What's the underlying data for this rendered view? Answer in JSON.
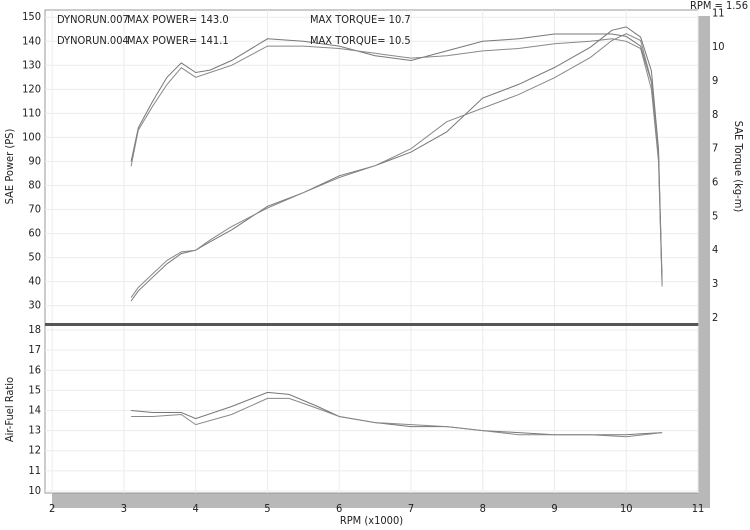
{
  "chart_data": [
    {
      "type": "line",
      "note": "RPM = 1.56",
      "ylabel": "SAE Power (PS)",
      "y2label": "SAE Torque (kg-m)",
      "annotations": [
        "MAX POWER= 143.0",
        "MAX TORQUE= 10.7",
        "MAX POWER= 141.1",
        "MAX TORQUE= 10.5"
      ],
      "x": [
        3.1,
        3.2,
        3.4,
        3.6,
        3.8,
        4.0,
        4.2,
        4.5,
        5.0,
        5.5,
        6.0,
        6.5,
        7.0,
        7.5,
        8.0,
        8.5,
        9.0,
        9.5,
        9.8,
        10.0,
        10.2,
        10.35,
        10.45,
        10.5
      ],
      "xlim": [
        1.9,
        11
      ],
      "xticks": [
        2,
        3,
        4,
        5,
        6,
        7,
        8,
        9,
        10,
        11
      ],
      "ylim": [
        22.8,
        153
      ],
      "yticks": [
        30,
        40,
        50,
        60,
        70,
        80,
        90,
        100,
        110,
        120,
        130,
        140,
        150
      ],
      "y2lim": [
        1.85,
        11.1
      ],
      "y2ticks": [
        2,
        3,
        4,
        5,
        6,
        7,
        8,
        9,
        10,
        11
      ],
      "grid": true,
      "series": [
        {
          "name": "DYNORUN.007",
          "color": "#777777",
          "values": [
            90,
            104,
            115,
            125,
            131,
            127,
            128,
            132,
            141,
            140,
            138,
            134,
            132,
            136,
            140,
            141,
            143,
            143,
            143,
            142,
            138,
            123,
            94,
            39
          ]
        },
        {
          "name": "DYNORUN.004",
          "color": "#888888",
          "values": [
            88,
            103,
            113,
            122,
            129,
            125,
            127,
            130,
            138,
            138,
            137,
            135,
            133,
            134,
            136,
            137,
            139,
            140,
            141,
            140,
            137,
            120,
            90,
            38
          ]
        },
        {
          "axis": "y2",
          "color": "#777777",
          "values": [
            2.5,
            2.8,
            3.2,
            3.6,
            3.9,
            4.0,
            4.25,
            4.6,
            5.3,
            5.7,
            6.2,
            6.5,
            6.9,
            7.5,
            8.5,
            8.9,
            9.4,
            10.0,
            10.5,
            10.6,
            10.3,
            9.3,
            7.0,
            3.1
          ]
        },
        {
          "axis": "y2",
          "color": "#888888",
          "values": [
            2.6,
            2.9,
            3.3,
            3.7,
            3.95,
            4.0,
            4.3,
            4.7,
            5.25,
            5.7,
            6.15,
            6.5,
            7.0,
            7.8,
            8.2,
            8.6,
            9.1,
            9.7,
            10.2,
            10.4,
            10.2,
            9.0,
            6.8,
            3.0
          ]
        }
      ]
    },
    {
      "type": "line",
      "ylabel": "Air-Fuel Ratio",
      "xlabel": "RPM (x1000)",
      "x": [
        3.1,
        3.4,
        3.8,
        4.0,
        4.5,
        5.0,
        5.3,
        5.7,
        6.0,
        6.5,
        7.0,
        7.5,
        8.0,
        8.5,
        9.0,
        9.5,
        10.0,
        10.5
      ],
      "xlim": [
        1.9,
        11
      ],
      "xticks": [
        2,
        3,
        4,
        5,
        6,
        7,
        8,
        9,
        10,
        11
      ],
      "ylim": [
        9.9,
        18.2
      ],
      "yticks": [
        10,
        11,
        12,
        13,
        14,
        15,
        16,
        17,
        18
      ],
      "grid": true,
      "series": [
        {
          "color": "#777777",
          "values": [
            14.0,
            13.9,
            13.9,
            13.6,
            14.2,
            14.9,
            14.8,
            14.2,
            13.7,
            13.4,
            13.2,
            13.2,
            13.0,
            12.9,
            12.8,
            12.8,
            12.8,
            12.9
          ]
        },
        {
          "color": "#888888",
          "values": [
            13.7,
            13.7,
            13.8,
            13.3,
            13.8,
            14.6,
            14.6,
            14.1,
            13.7,
            13.4,
            13.3,
            13.2,
            13.0,
            12.8,
            12.8,
            12.8,
            12.7,
            12.9
          ]
        }
      ]
    }
  ]
}
